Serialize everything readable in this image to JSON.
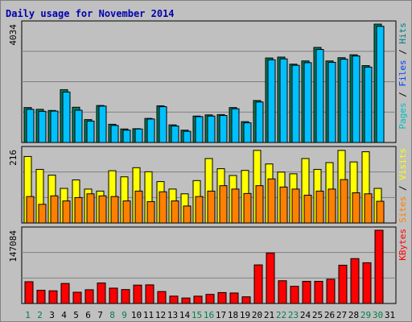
{
  "chart_data": {
    "type": "bar",
    "title": "Daily usage for November 2014",
    "categories": [
      "1",
      "2",
      "3",
      "4",
      "5",
      "6",
      "7",
      "8",
      "9",
      "10",
      "11",
      "12",
      "13",
      "14",
      "15",
      "16",
      "17",
      "18",
      "19",
      "20",
      "21",
      "22",
      "23",
      "24",
      "25",
      "26",
      "27",
      "28",
      "29",
      "30",
      "31"
    ],
    "weekend_days": [
      "1",
      "2",
      "8",
      "9",
      "15",
      "16",
      "22",
      "23",
      "29",
      "30"
    ],
    "panels": [
      {
        "id": "hits",
        "ymax_label": "4034",
        "ymax": 4034,
        "legend": [
          "Pages",
          "Files",
          "Hits"
        ],
        "legend_colors": [
          "#00c0c0",
          "#0040ff",
          "#008080"
        ],
        "series": [
          {
            "name": "Hits",
            "color": "#00805c",
            "values": [
              1190,
              1130,
              1090,
              1800,
              1200,
              780,
              1260,
              620,
              460,
              470,
              820,
              1250,
              600,
              420,
              900,
              940,
              950,
              1190,
              710,
              1430,
              2880,
              2910,
              2670,
              2780,
              3240,
              2780,
              2890,
              2990,
              2620,
              4034,
              0
            ]
          },
          {
            "name": "Files",
            "color": "#00c0ff",
            "values": [
              1130,
              1060,
              1070,
              1720,
              1100,
              730,
              1240,
              580,
              420,
              460,
              800,
              1220,
              560,
              380,
              880,
              900,
              920,
              1150,
              670,
              1380,
              2820,
              2850,
              2630,
              2720,
              3170,
              2730,
              2840,
              2950,
              2570,
              3960,
              0
            ]
          }
        ]
      },
      {
        "id": "visits",
        "ymax_label": "216",
        "ymax": 216,
        "legend": [
          "Sites",
          "Visits"
        ],
        "legend_colors": [
          "#ff8000",
          "#ffff00"
        ],
        "series": [
          {
            "name": "Visits",
            "color": "#ffff00",
            "values": [
              196,
              158,
              141,
              102,
              127,
              100,
              94,
              154,
              136,
              163,
              151,
              122,
              100,
              86,
              125,
              190,
              160,
              140,
              155,
              214,
              174,
              150,
              145,
              190,
              158,
              178,
              214,
              180,
              210,
              102,
              0
            ]
          },
          {
            "name": "Sites",
            "color": "#ff8000",
            "values": [
              78,
              55,
              80,
              65,
              75,
              86,
              80,
              78,
              65,
              94,
              63,
              92,
              65,
              50,
              78,
              94,
              110,
              100,
              87,
              110,
              130,
              106,
              100,
              82,
              94,
              100,
              128,
              89,
              86,
              64,
              0
            ]
          }
        ]
      },
      {
        "id": "kbytes",
        "ymax_label": "147084",
        "ymax": 147084,
        "legend": [
          "KBytes"
        ],
        "legend_colors": [
          "#ff0000"
        ],
        "series": [
          {
            "name": "KBytes",
            "color": "#ff0000",
            "values": [
              43700,
              26500,
              25500,
              40200,
              22600,
              27600,
              41200,
              30800,
              28000,
              36900,
              37400,
              24000,
              14800,
              11000,
              14700,
              18300,
              21900,
              21100,
              13400,
              77500,
              101400,
              45700,
              34500,
              44500,
              44500,
              48700,
              76900,
              90100,
              81800,
              147084,
              0
            ]
          }
        ]
      }
    ]
  }
}
